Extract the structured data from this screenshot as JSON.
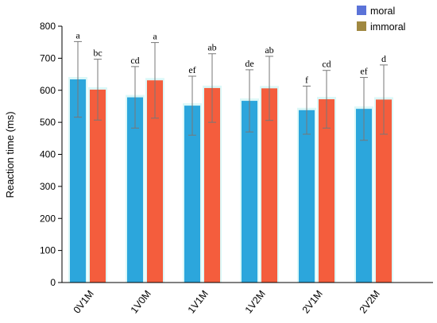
{
  "chart_data": {
    "type": "bar",
    "ylabel": "Reaction time (ms)",
    "xlabel": "",
    "ylim": [
      0,
      800
    ],
    "yticks": [
      0,
      100,
      200,
      300,
      400,
      500,
      600,
      700,
      800
    ],
    "categories": [
      "0V1M",
      "1V0M",
      "1V1M",
      "1V2M",
      "2V1M",
      "2V2M"
    ],
    "legend_position": "top-right",
    "series": [
      {
        "name": "moral",
        "legend_color": "#5b73d8",
        "bar_color": "#2ca6dc",
        "values": [
          634,
          578,
          552,
          567,
          538,
          542
        ],
        "error": [
          118,
          96,
          92,
          97,
          75,
          98
        ],
        "labels": [
          "a",
          "cd",
          "ef",
          "de",
          "f",
          "ef"
        ]
      },
      {
        "name": "immoral",
        "legend_color": "#a08840",
        "bar_color": "#f45d3d",
        "values": [
          602,
          631,
          607,
          606,
          572,
          571
        ],
        "error": [
          95,
          118,
          107,
          100,
          90,
          108
        ],
        "labels": [
          "bc",
          "a",
          "ab",
          "ab",
          "cd",
          "d"
        ]
      }
    ]
  }
}
